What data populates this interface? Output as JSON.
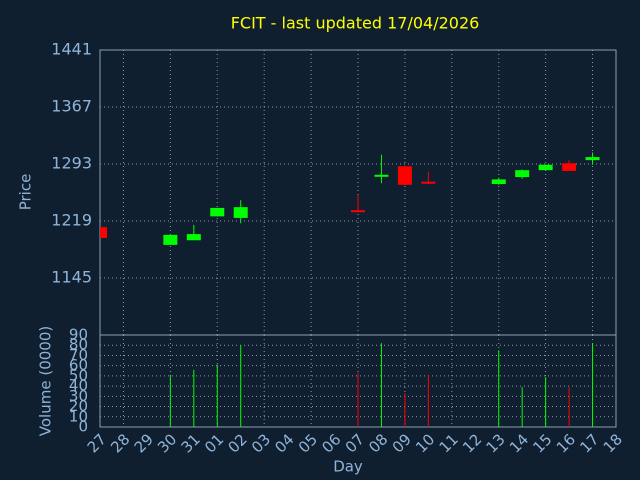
{
  "chart_data": {
    "type": "candlestick",
    "title": "FCIT - last updated 17/04/2026",
    "x_label": "Day",
    "y_label": "Price",
    "y2_label": "Volume (0000)",
    "categories": [
      "27",
      "28",
      "29",
      "30",
      "31",
      "01",
      "02",
      "03",
      "04",
      "05",
      "06",
      "07",
      "08",
      "09",
      "10",
      "11",
      "12",
      "13",
      "14",
      "15",
      "16",
      "17",
      "18"
    ],
    "open": [
      1211,
      null,
      null,
      1188,
      1194,
      1225,
      1223,
      null,
      null,
      null,
      null,
      1233,
      1278,
      1290,
      1270,
      null,
      null,
      1267,
      1276,
      1285,
      1294,
      1298,
      null
    ],
    "high": [
      1211,
      null,
      null,
      1201,
      1214,
      1236,
      1246,
      null,
      null,
      null,
      null,
      1253,
      1305,
      1291,
      1283,
      null,
      null,
      1275,
      1286,
      1292,
      1298,
      1308,
      null
    ],
    "low": [
      1197,
      null,
      null,
      1188,
      1194,
      1225,
      1216,
      null,
      null,
      null,
      null,
      1232,
      1268,
      1265,
      1267,
      null,
      null,
      1266,
      1274,
      1285,
      1284,
      1292,
      null
    ],
    "close": [
      1197,
      null,
      null,
      1201,
      1202,
      1236,
      1237,
      null,
      null,
      null,
      null,
      1232,
      1279,
      1266,
      1268,
      null,
      null,
      1273,
      1285,
      1292,
      1284,
      1302,
      null
    ],
    "volume": [
      null,
      null,
      null,
      51,
      56,
      61,
      80,
      null,
      null,
      null,
      null,
      53,
      82,
      33,
      51,
      null,
      null,
      75,
      39,
      49,
      39,
      82,
      null
    ],
    "up_color": "#00ff00",
    "down_color": "#ff0000",
    "ylim": [
      1071,
      1441
    ],
    "yticks": [
      1145,
      1219,
      1293,
      1367,
      1441
    ],
    "y2lim": [
      0,
      90
    ],
    "y2ticks": [
      0,
      10,
      20,
      30,
      40,
      50,
      60,
      70,
      80,
      90
    ],
    "grid": true
  }
}
